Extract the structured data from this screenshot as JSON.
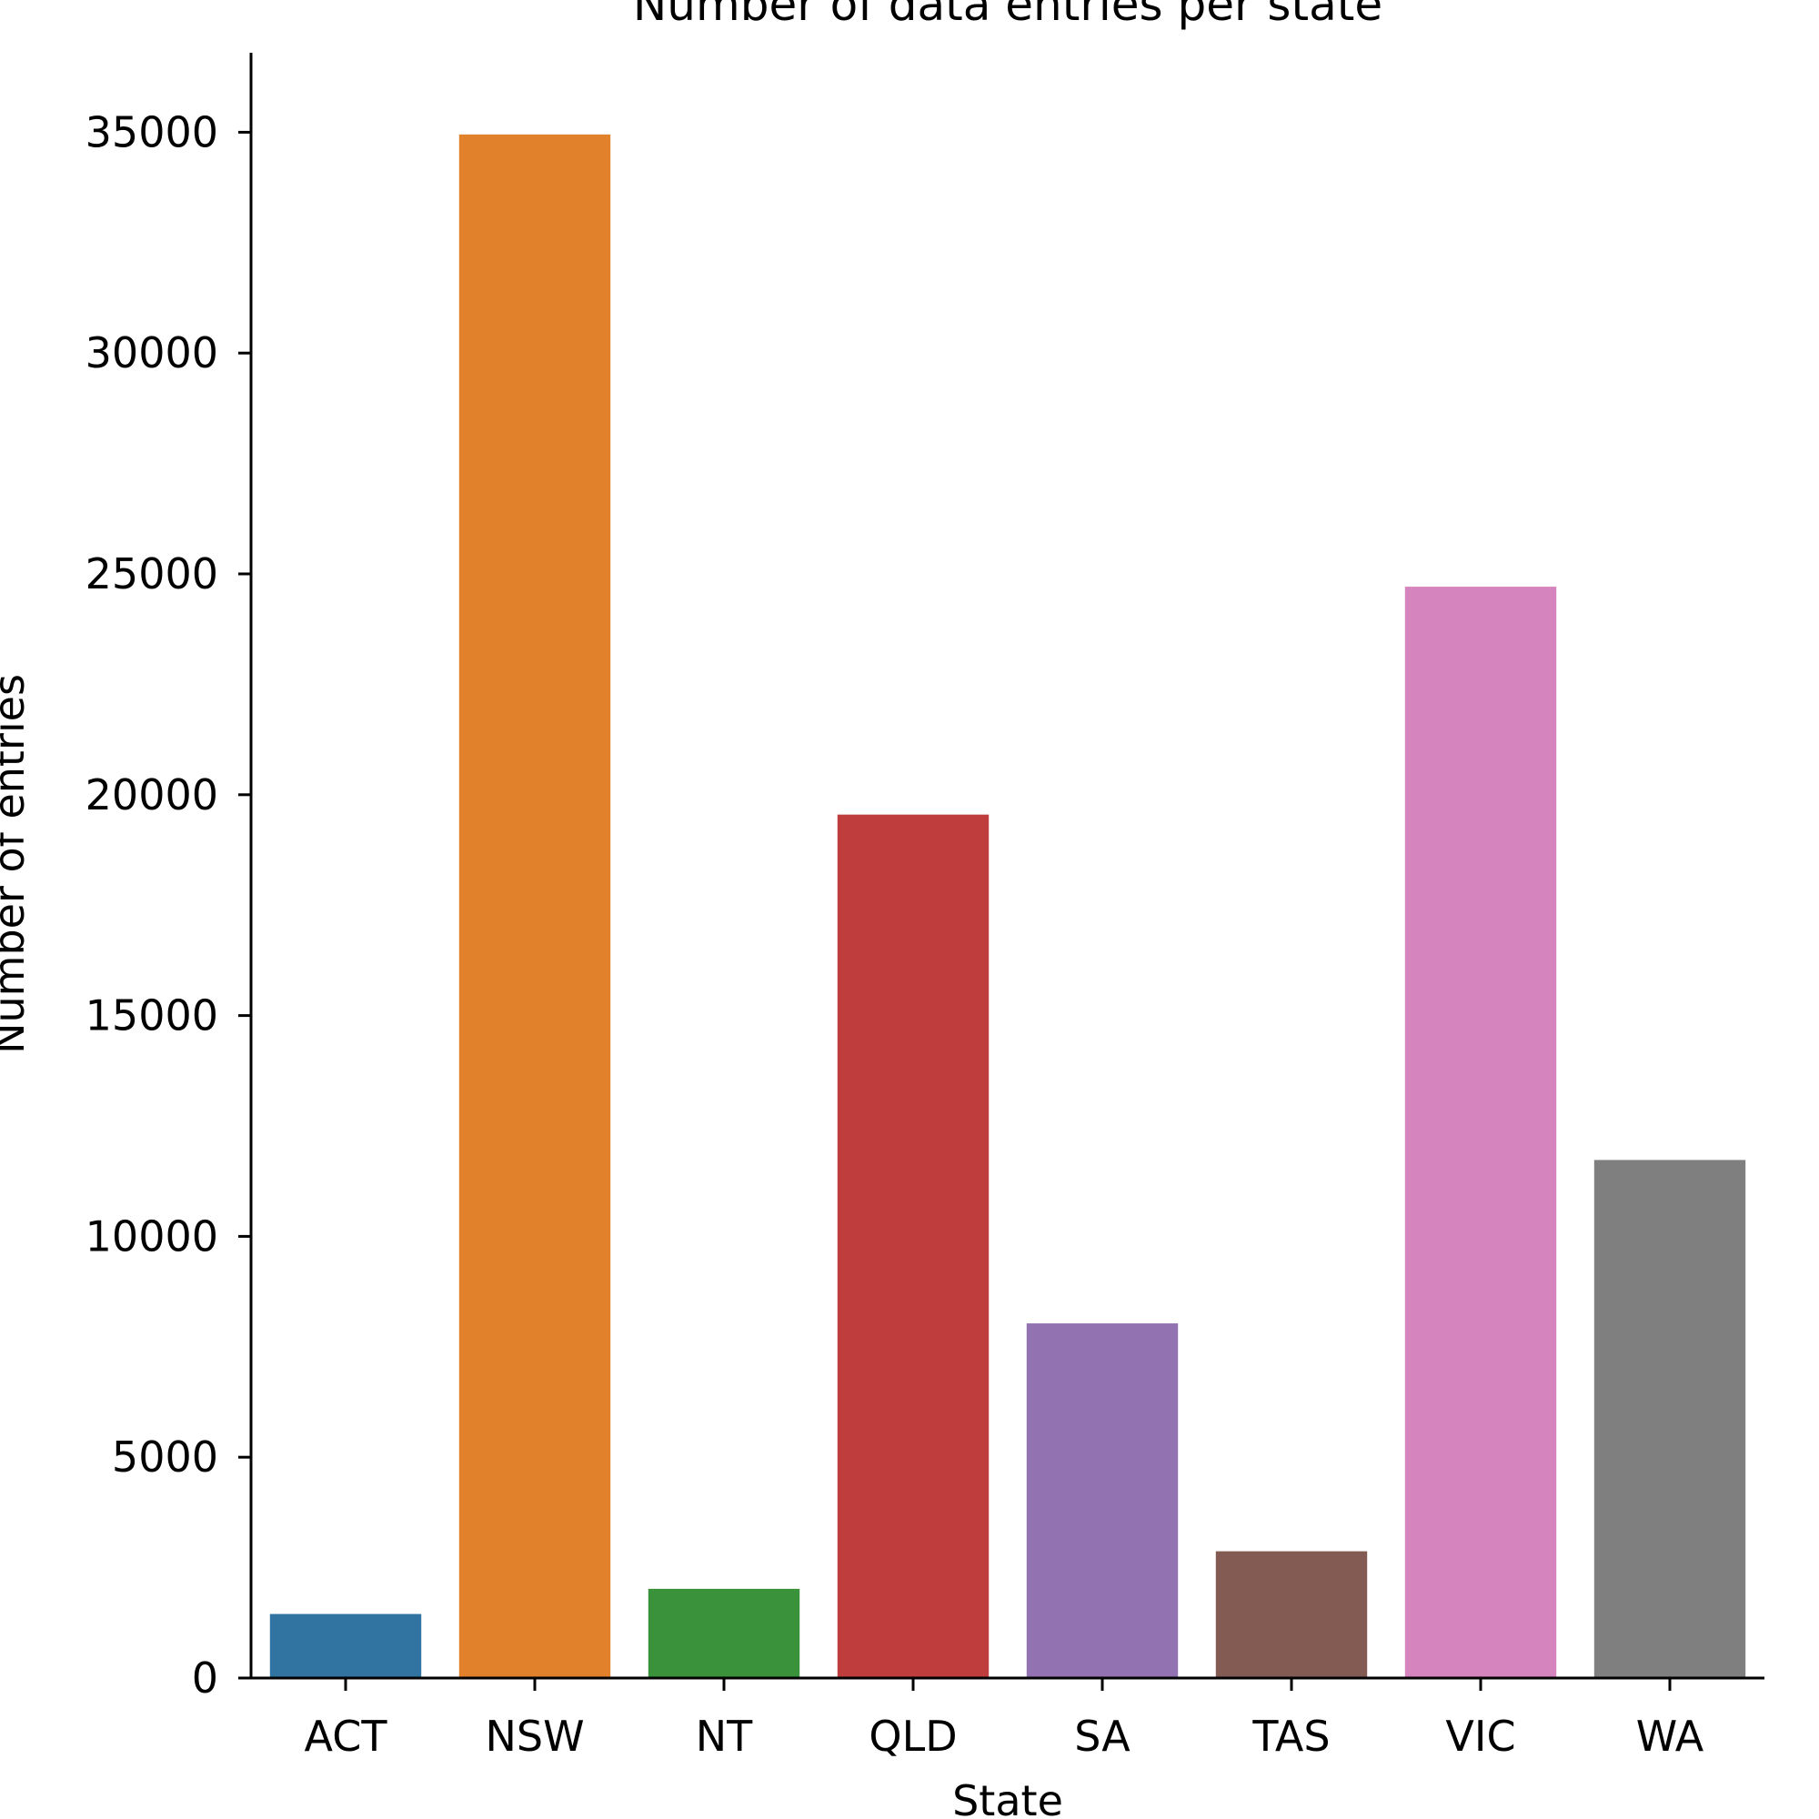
{
  "chart_data": {
    "type": "bar",
    "title": "Number of data entries per state",
    "xlabel": "State",
    "ylabel": "Number of entries",
    "categories": [
      "ACT",
      "NSW",
      "NT",
      "QLD",
      "SA",
      "TAS",
      "VIC",
      "WA"
    ],
    "values": [
      1450,
      34950,
      2020,
      19550,
      8030,
      2870,
      24710,
      11730
    ],
    "colors": [
      "#3274a1",
      "#e1812c",
      "#3a923a",
      "#c03d3e",
      "#9372b2",
      "#845b53",
      "#d684bd",
      "#7f7f7f"
    ],
    "ylim": [
      0,
      36800
    ],
    "yticks": [
      0,
      5000,
      10000,
      15000,
      20000,
      25000,
      30000,
      35000
    ],
    "grid": false,
    "legend": "none"
  }
}
